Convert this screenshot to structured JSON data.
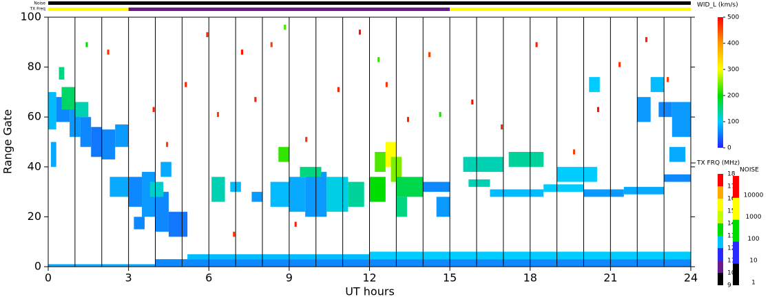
{
  "chart_data": {
    "type": "range-time",
    "x_label": "UT hours",
    "y_label": "Range Gate",
    "xlim": [
      0,
      24
    ],
    "xticks": [
      0,
      3,
      6,
      9,
      12,
      15,
      18,
      21,
      24
    ],
    "xgrid": [
      1,
      2,
      3,
      4,
      5,
      6,
      7,
      8,
      9,
      10,
      11,
      12,
      13,
      14,
      15,
      16,
      17,
      18,
      19,
      20,
      21,
      22,
      23
    ],
    "ylim": [
      0,
      100
    ],
    "yticks": [
      0,
      20,
      40,
      60,
      80,
      100
    ],
    "colorbar": {
      "label": "WID_L (km/s)",
      "lim": [
        0,
        500
      ],
      "ticks": [
        0,
        100,
        200,
        300,
        400,
        500
      ],
      "colors": [
        "#2222ff",
        "#00ccff",
        "#00dd00",
        "#ffff00",
        "#ff9900",
        "#ff0000"
      ]
    },
    "tx_scale": {
      "label": "TX FRQ (MHz)",
      "lim": [
        9,
        18
      ],
      "ticks": [
        9,
        10,
        11,
        12,
        13,
        14,
        15,
        16,
        17,
        18
      ],
      "colors": [
        "#000000",
        "#6a1a8a",
        "#2a2aff",
        "#00c0ff",
        "#00dd00",
        "#c0ff00",
        "#ffff00",
        "#ffaa00",
        "#ff0000"
      ]
    },
    "noise_scale": {
      "label": "NOISE",
      "lim": [
        1,
        100000
      ],
      "ticks": [
        1,
        10,
        100,
        1000,
        10000
      ],
      "colors": [
        "#000000",
        "#2a2aff",
        "#00dd00",
        "#ffff00",
        "#ff0000"
      ]
    },
    "noise_bar": {
      "label": "Noise",
      "segments": [
        {
          "start": 0,
          "end": 24,
          "value": 1
        }
      ]
    },
    "tx_bar": {
      "label": "TX Freq",
      "segments": [
        {
          "start": 0,
          "end": 3,
          "value": 15
        },
        {
          "start": 3,
          "end": 15,
          "value": 10
        },
        {
          "start": 15,
          "end": 24,
          "value": 15
        }
      ]
    },
    "echoes": [
      [
        0.0,
        0.3,
        55,
        70,
        90
      ],
      [
        0.3,
        0.8,
        58,
        68,
        60
      ],
      [
        0.8,
        1.2,
        52,
        65,
        70
      ],
      [
        1.2,
        1.6,
        48,
        60,
        60
      ],
      [
        1.6,
        2.0,
        44,
        56,
        50
      ],
      [
        2.0,
        2.5,
        43,
        55,
        60
      ],
      [
        2.5,
        3.0,
        48,
        57,
        70
      ],
      [
        0.5,
        1.0,
        63,
        72,
        160
      ],
      [
        1.0,
        1.5,
        60,
        66,
        130
      ],
      [
        0.1,
        0.3,
        40,
        50,
        80
      ],
      [
        0.4,
        0.6,
        75,
        80,
        150
      ],
      [
        3.0,
        3.5,
        24,
        36,
        60
      ],
      [
        3.5,
        4.0,
        20,
        38,
        70
      ],
      [
        4.0,
        4.5,
        14,
        30,
        60
      ],
      [
        4.5,
        5.2,
        12,
        22,
        50
      ],
      [
        3.2,
        3.6,
        15,
        20,
        60
      ],
      [
        3.8,
        4.3,
        28,
        34,
        120
      ],
      [
        4.2,
        4.6,
        36,
        42,
        80
      ],
      [
        2.3,
        3.0,
        28,
        36,
        80
      ],
      [
        6.1,
        6.6,
        26,
        36,
        130
      ],
      [
        6.8,
        7.2,
        30,
        34,
        90
      ],
      [
        7.6,
        8.0,
        26,
        30,
        70
      ],
      [
        8.3,
        9.0,
        24,
        34,
        90
      ],
      [
        9.0,
        9.6,
        22,
        36,
        80
      ],
      [
        9.6,
        10.4,
        20,
        38,
        70
      ],
      [
        10.4,
        11.2,
        22,
        36,
        110
      ],
      [
        11.2,
        11.8,
        24,
        34,
        140
      ],
      [
        9.4,
        10.2,
        36,
        40,
        150
      ],
      [
        8.6,
        9.0,
        42,
        48,
        220
      ],
      [
        12.2,
        12.6,
        38,
        46,
        230
      ],
      [
        12.6,
        13.0,
        40,
        50,
        300
      ],
      [
        12.8,
        13.2,
        34,
        44,
        250
      ],
      [
        12.0,
        12.6,
        26,
        36,
        200
      ],
      [
        13.0,
        14.0,
        28,
        36,
        170
      ],
      [
        13.0,
        13.4,
        20,
        28,
        150
      ],
      [
        14.0,
        15.0,
        30,
        34,
        60
      ],
      [
        14.5,
        15.0,
        20,
        28,
        70
      ],
      [
        15.7,
        16.5,
        32,
        35,
        130
      ],
      [
        16.5,
        18.5,
        28,
        31,
        90
      ],
      [
        18.5,
        20.0,
        30,
        33,
        100
      ],
      [
        20.0,
        21.5,
        28,
        31,
        70
      ],
      [
        21.5,
        23.0,
        29,
        32,
        80
      ],
      [
        23.0,
        24.0,
        34,
        37,
        60
      ],
      [
        15.5,
        17.0,
        38,
        44,
        130
      ],
      [
        17.2,
        18.5,
        40,
        46,
        140
      ],
      [
        19.0,
        20.5,
        34,
        40,
        100
      ],
      [
        22.0,
        22.5,
        58,
        68,
        70
      ],
      [
        22.8,
        23.3,
        60,
        66,
        60
      ],
      [
        23.3,
        24.0,
        52,
        66,
        70
      ],
      [
        22.5,
        23.0,
        70,
        76,
        90
      ],
      [
        23.2,
        23.8,
        42,
        48,
        80
      ],
      [
        20.2,
        20.6,
        70,
        76,
        100
      ],
      [
        4.0,
        24.0,
        0,
        3,
        60
      ],
      [
        5.2,
        12.0,
        3,
        5,
        90
      ],
      [
        12.0,
        24.0,
        3,
        6,
        100
      ],
      [
        0.0,
        4.0,
        0,
        1,
        80
      ],
      [
        5.1,
        5.18,
        72,
        74,
        480
      ],
      [
        5.9,
        5.98,
        92,
        94,
        470
      ],
      [
        6.3,
        6.38,
        60,
        62,
        460
      ],
      [
        7.2,
        7.28,
        85,
        87,
        490
      ],
      [
        7.7,
        7.78,
        66,
        68,
        480
      ],
      [
        8.3,
        8.38,
        88,
        90,
        460
      ],
      [
        9.6,
        9.68,
        50,
        52,
        470
      ],
      [
        10.8,
        10.88,
        70,
        72,
        480
      ],
      [
        11.6,
        11.68,
        93,
        95,
        490
      ],
      [
        12.6,
        12.68,
        72,
        74,
        470
      ],
      [
        13.4,
        13.48,
        58,
        60,
        480
      ],
      [
        14.2,
        14.28,
        84,
        86,
        460
      ],
      [
        15.8,
        15.88,
        65,
        67,
        490
      ],
      [
        16.9,
        16.98,
        55,
        57,
        470
      ],
      [
        18.2,
        18.28,
        88,
        90,
        480
      ],
      [
        19.6,
        19.68,
        45,
        47,
        460
      ],
      [
        20.5,
        20.58,
        62,
        64,
        490
      ],
      [
        21.3,
        21.38,
        80,
        82,
        470
      ],
      [
        22.3,
        22.38,
        90,
        92,
        480
      ],
      [
        23.1,
        23.18,
        74,
        76,
        460
      ],
      [
        2.2,
        2.28,
        85,
        87,
        470
      ],
      [
        3.9,
        3.98,
        62,
        64,
        480
      ],
      [
        4.4,
        4.48,
        48,
        50,
        460
      ],
      [
        6.9,
        6.98,
        12,
        14,
        470
      ],
      [
        9.2,
        9.28,
        16,
        18,
        480
      ],
      [
        1.4,
        1.48,
        88,
        90,
        200
      ],
      [
        12.3,
        12.38,
        82,
        84,
        220
      ],
      [
        14.6,
        14.68,
        60,
        62,
        210
      ],
      [
        8.8,
        8.88,
        95,
        97,
        230
      ]
    ]
  }
}
